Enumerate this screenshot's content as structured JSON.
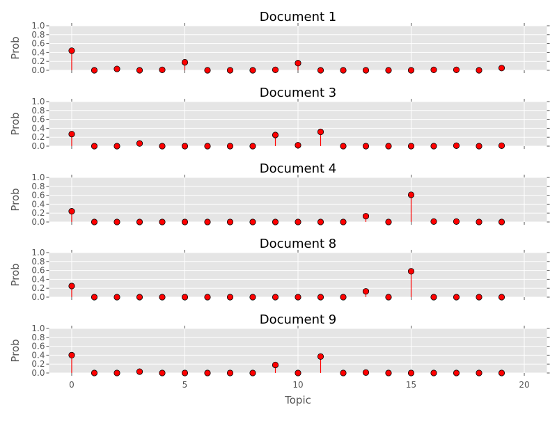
{
  "chart_data": {
    "type": "stem",
    "xlabel": "Topic",
    "ylabel": "Prob",
    "xlim": [
      -1,
      21
    ],
    "ylim": [
      0,
      1.0
    ],
    "x_ticks": [
      0,
      5,
      10,
      15,
      20
    ],
    "y_ticks": [
      0.0,
      0.2,
      0.4,
      0.6,
      0.8,
      1.0
    ],
    "grid": true,
    "background_color": "#e5e5e5",
    "stem_color": "#ff0000",
    "marker_face_color": "#ff0000",
    "marker_edge_color": "#000000",
    "x": [
      0,
      1,
      2,
      3,
      4,
      5,
      6,
      7,
      8,
      9,
      10,
      11,
      12,
      13,
      14,
      15,
      16,
      17,
      18,
      19
    ],
    "panels": [
      {
        "title": "Document 1",
        "values": [
          0.44,
          0.0,
          0.03,
          0.0,
          0.01,
          0.18,
          0.0,
          0.0,
          0.0,
          0.01,
          0.16,
          0.0,
          0.0,
          0.0,
          0.0,
          0.0,
          0.01,
          0.01,
          0.0,
          0.05
        ]
      },
      {
        "title": "Document 3",
        "values": [
          0.27,
          0.0,
          0.0,
          0.06,
          0.0,
          0.0,
          0.0,
          0.0,
          0.0,
          0.25,
          0.02,
          0.32,
          0.0,
          0.0,
          0.0,
          0.0,
          0.0,
          0.01,
          0.0,
          0.01
        ]
      },
      {
        "title": "Document 4",
        "values": [
          0.24,
          0.0,
          0.0,
          0.0,
          0.0,
          0.0,
          0.0,
          0.0,
          0.0,
          0.0,
          0.0,
          0.0,
          0.0,
          0.13,
          0.0,
          0.61,
          0.01,
          0.01,
          0.0,
          0.0
        ]
      },
      {
        "title": "Document 8",
        "values": [
          0.25,
          0.0,
          0.0,
          0.0,
          0.0,
          0.0,
          0.0,
          0.0,
          0.0,
          0.0,
          0.0,
          0.0,
          0.0,
          0.13,
          0.0,
          0.58,
          0.0,
          0.0,
          0.0,
          0.0
        ]
      },
      {
        "title": "Document 9",
        "values": [
          0.4,
          0.0,
          0.0,
          0.03,
          0.0,
          0.0,
          0.0,
          0.0,
          0.0,
          0.18,
          0.0,
          0.37,
          0.0,
          0.01,
          0.0,
          0.0,
          0.0,
          0.0,
          0.0,
          0.0
        ]
      }
    ]
  }
}
